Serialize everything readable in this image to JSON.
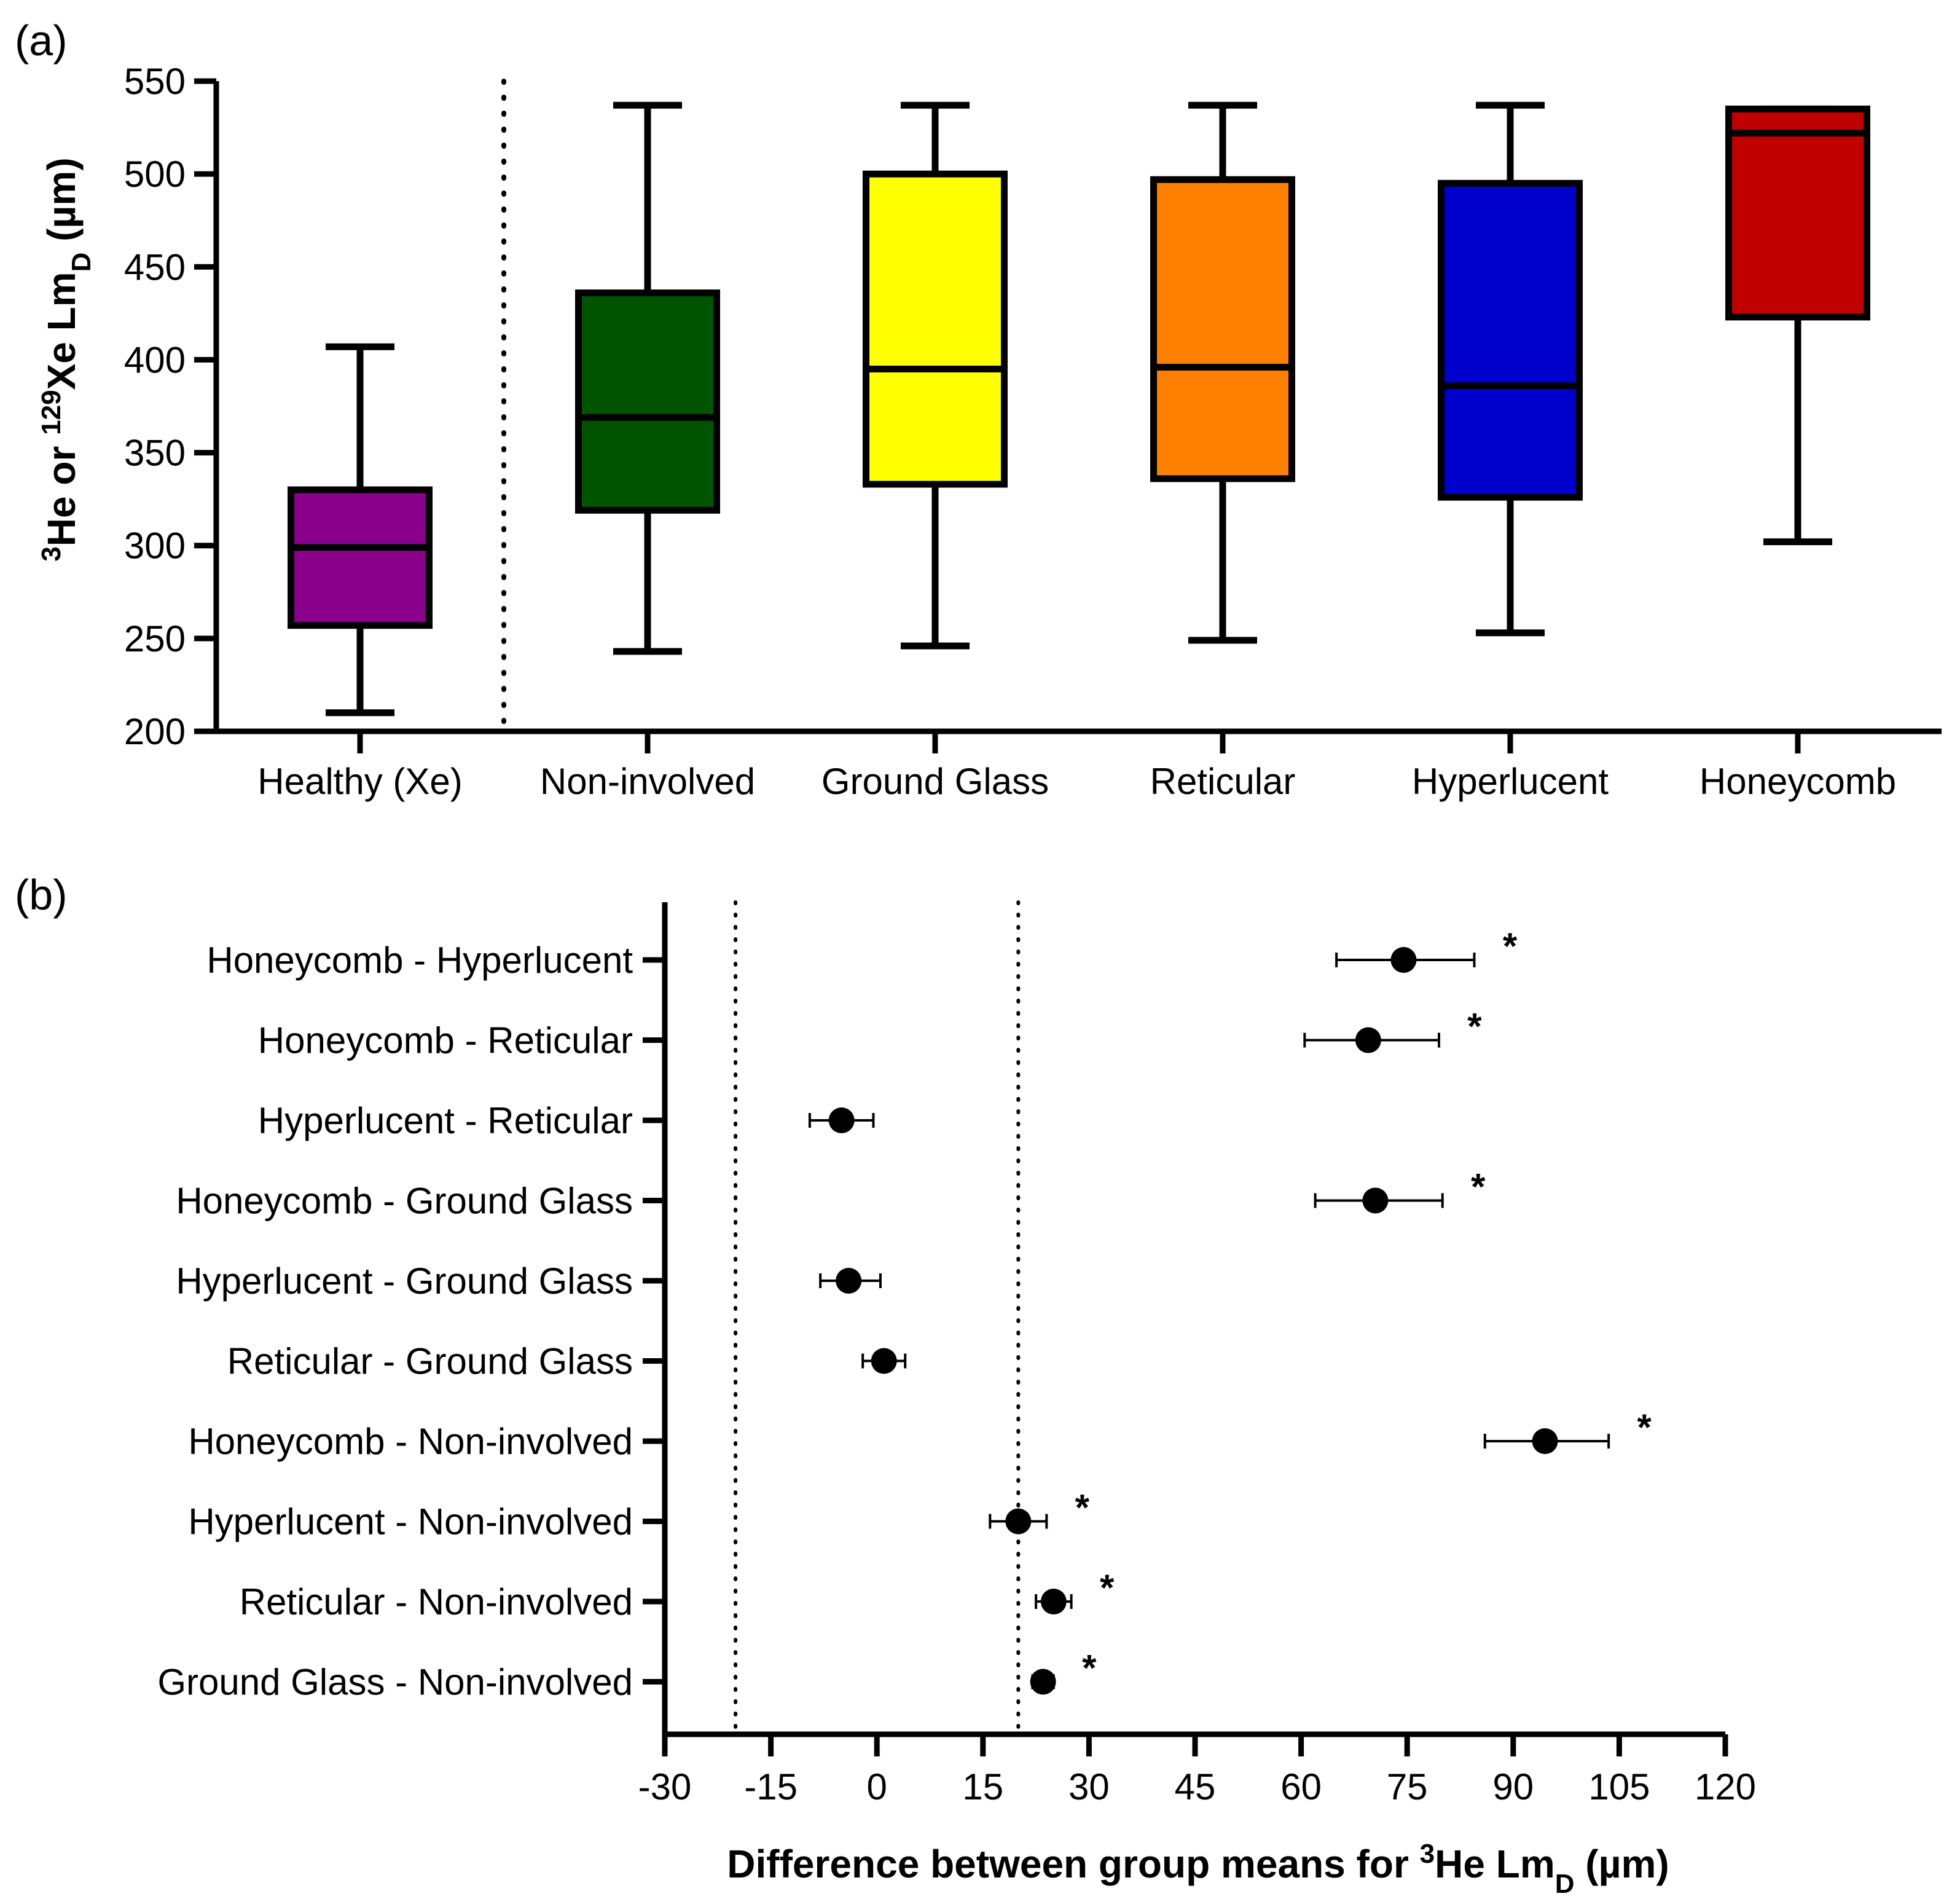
{
  "chart_data": [
    {
      "panel_label": "(a)",
      "type": "box",
      "ylabel": {
        "iso1_mass": "3",
        "iso1_el": "He or ",
        "iso2_mass": "129",
        "iso2_el": "Xe Lm",
        "sub": "D",
        "unit": " (µm)"
      },
      "ylim": [
        200,
        550
      ],
      "yticks": [
        200,
        250,
        300,
        350,
        400,
        450,
        500,
        550
      ],
      "divider_after_category": 0,
      "boxes": [
        {
          "category": "Healthy (Xe)",
          "min": 210,
          "q1": 257,
          "median": 299,
          "q3": 330,
          "max": 407,
          "color": "#8B008B"
        },
        {
          "category": "Non-involved",
          "min": 243,
          "q1": 319,
          "median": 369,
          "q3": 436,
          "max": 537,
          "color": "#005400"
        },
        {
          "category": "Ground Glass",
          "min": 246,
          "q1": 333,
          "median": 395,
          "q3": 500,
          "max": 537,
          "color": "#FFFF00"
        },
        {
          "category": "Reticular",
          "min": 249,
          "q1": 336,
          "median": 396,
          "q3": 497,
          "max": 537,
          "color": "#FF8000"
        },
        {
          "category": "Hyperlucent",
          "min": 253,
          "q1": 326,
          "median": 386,
          "q3": 495,
          "max": 537,
          "color": "#0000CC"
        },
        {
          "category": "Honeycomb",
          "min": 302,
          "q1": 423,
          "median": 522,
          "q3": 535,
          "max": 535,
          "color": "#C00000"
        }
      ]
    },
    {
      "panel_label": "(b)",
      "type": "errorbar",
      "xlabel": {
        "prefix": "Difference between group means for ",
        "mass": "3",
        "el": "He Lm",
        "sub": "D",
        "unit": " (µm)"
      },
      "xlim": [
        -30,
        120
      ],
      "xticks": [
        -30,
        -15,
        0,
        15,
        30,
        45,
        60,
        75,
        90,
        105,
        120
      ],
      "reference_lines": [
        -20,
        20
      ],
      "significance_marker": "*",
      "comparisons": [
        {
          "label": "Honeycomb - Hyperlucent",
          "mean": 74.5,
          "low": 65,
          "high": 84.5,
          "significant": true
        },
        {
          "label": "Honeycomb - Reticular",
          "mean": 69.5,
          "low": 60.5,
          "high": 79.5,
          "significant": true
        },
        {
          "label": "Hyperlucent - Reticular",
          "mean": -5,
          "low": -9.5,
          "high": -0.5,
          "significant": false
        },
        {
          "label": "Honeycomb - Ground Glass",
          "mean": 70.5,
          "low": 62,
          "high": 80,
          "significant": true
        },
        {
          "label": "Hyperlucent - Ground Glass",
          "mean": -4,
          "low": -8,
          "high": 0.5,
          "significant": false
        },
        {
          "label": "Reticular - Ground Glass",
          "mean": 1,
          "low": -2,
          "high": 4,
          "significant": false
        },
        {
          "label": "Honeycomb - Non-involved",
          "mean": 94.5,
          "low": 86,
          "high": 103.5,
          "significant": true
        },
        {
          "label": "Hyperlucent - Non-involved",
          "mean": 20,
          "low": 16,
          "high": 24,
          "significant": true
        },
        {
          "label": "Reticular - Non-involved",
          "mean": 25,
          "low": 22.5,
          "high": 27.5,
          "significant": true
        },
        {
          "label": "Ground Glass - Non-involved",
          "mean": 23.5,
          "low": 22,
          "high": 25,
          "significant": true
        }
      ]
    }
  ]
}
